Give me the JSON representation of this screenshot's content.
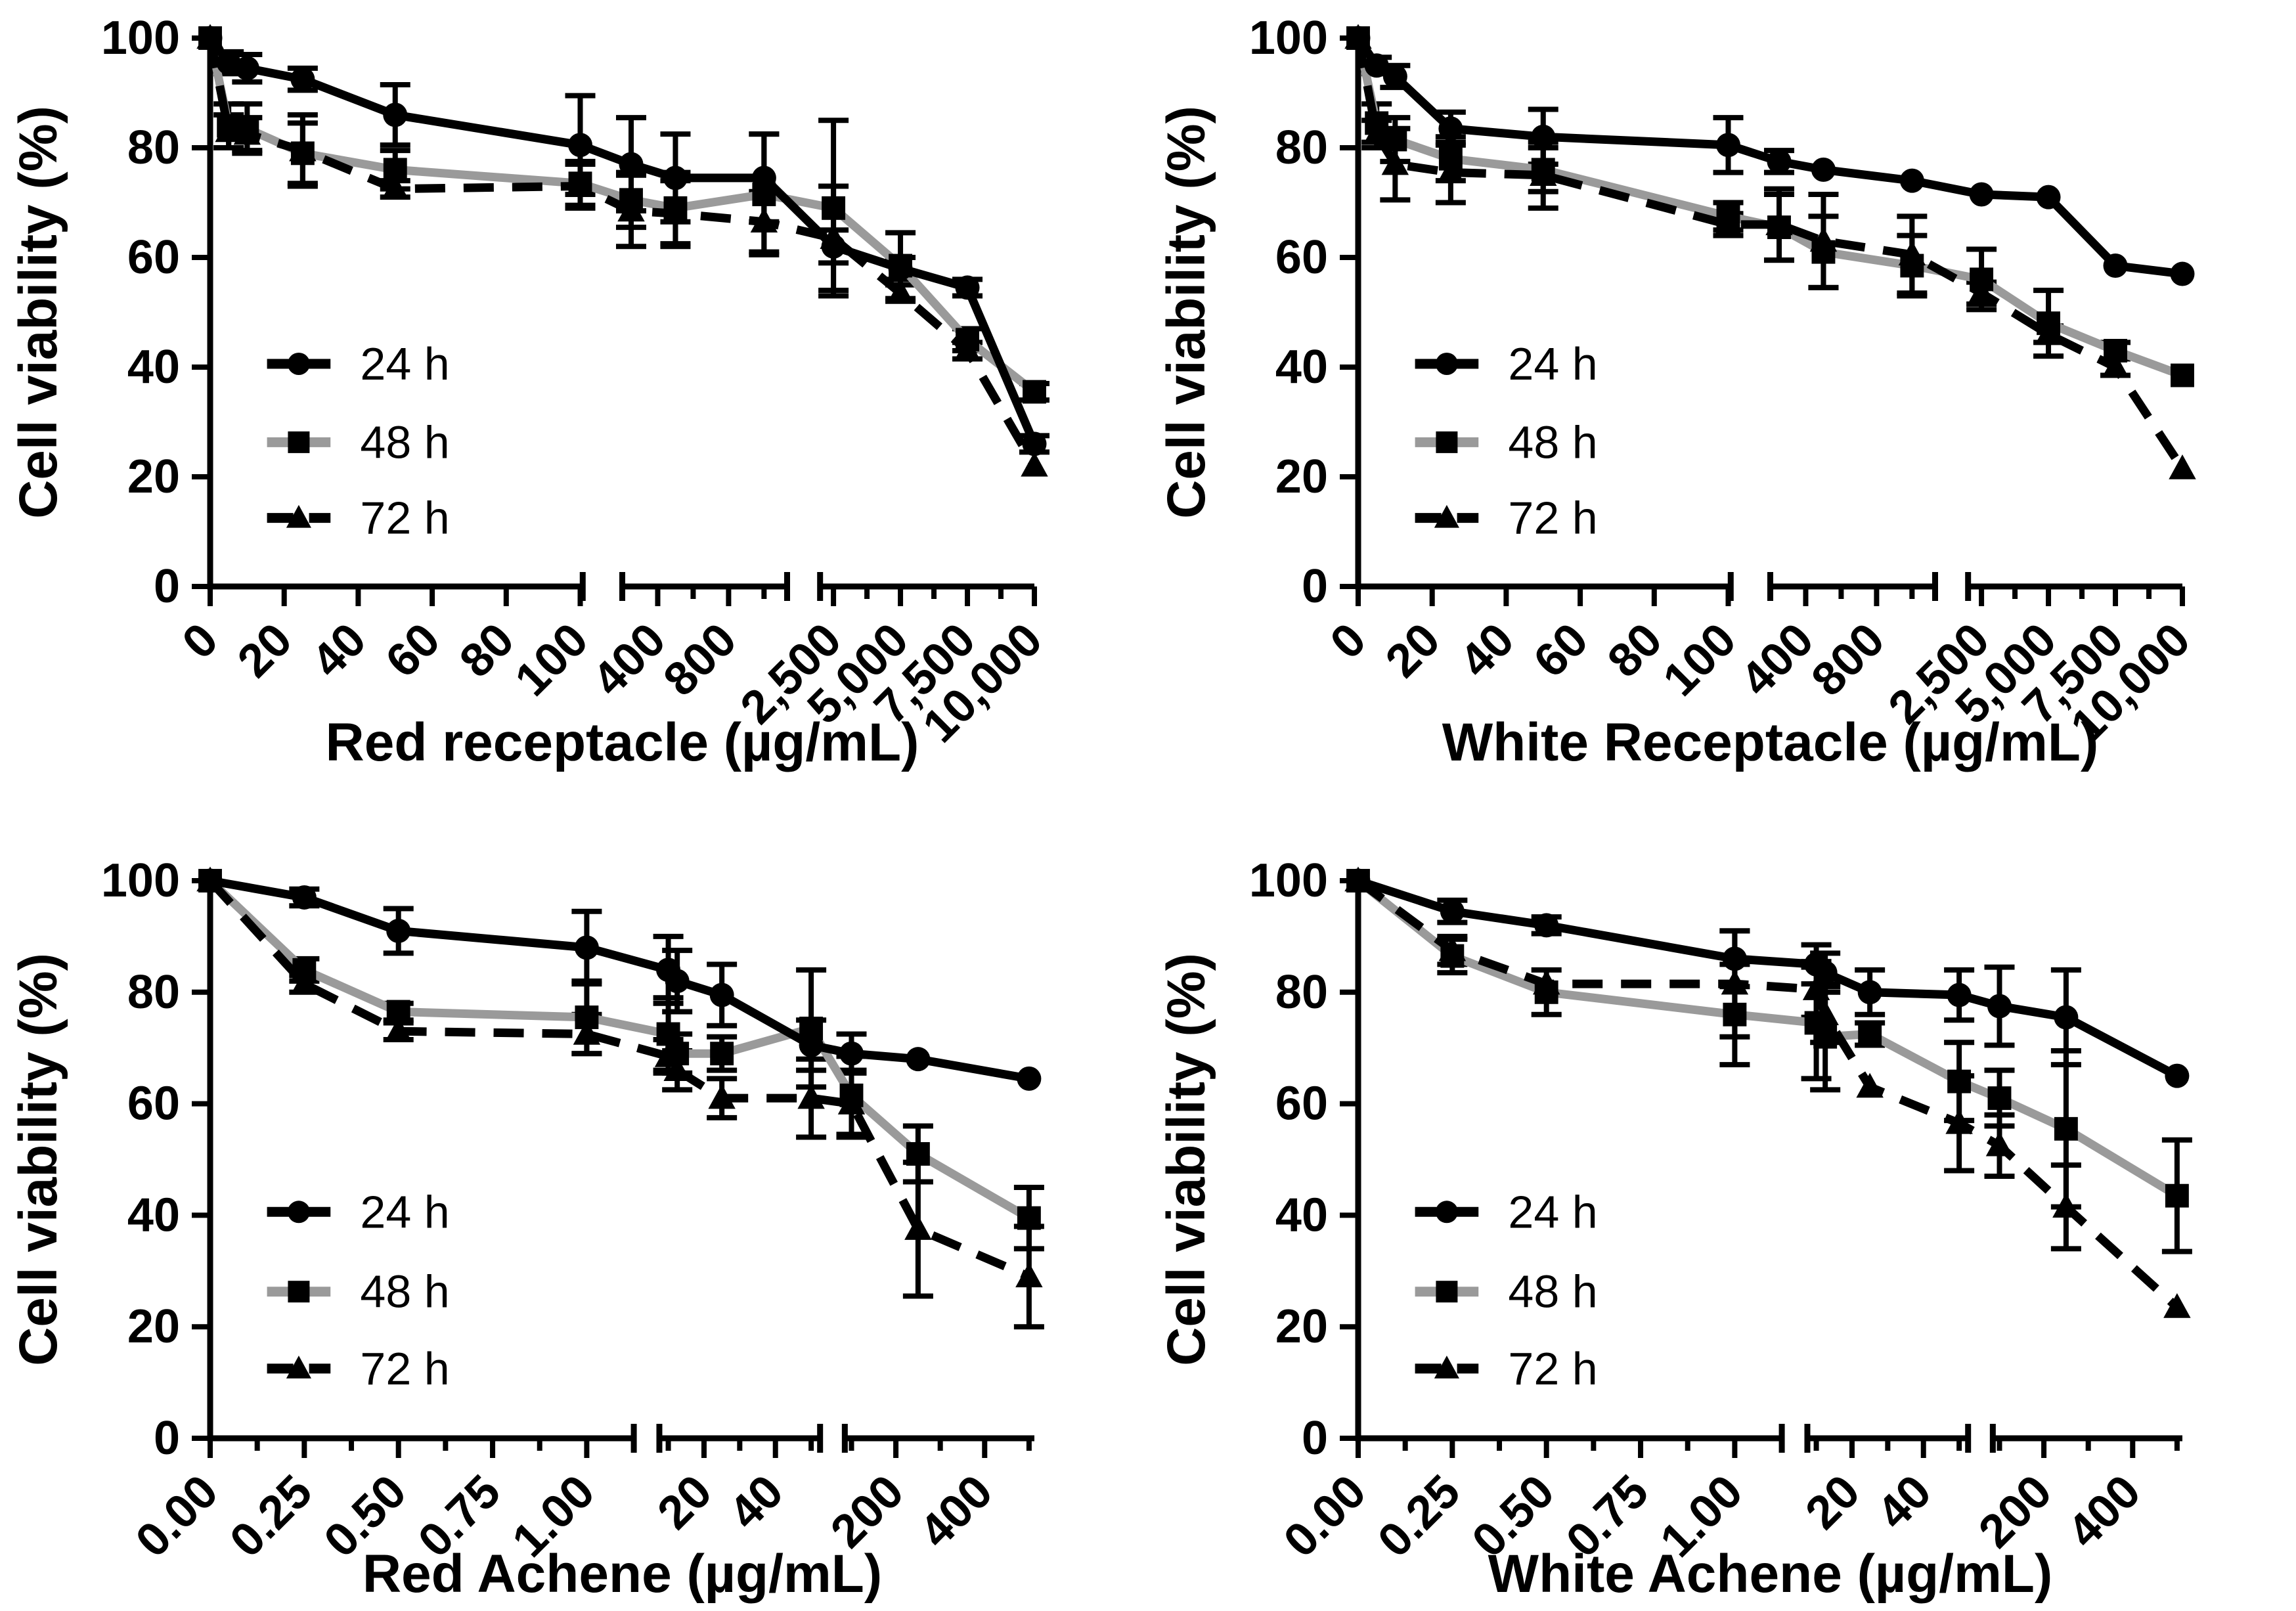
{
  "figure_title": "",
  "ylabel": "Cell viability (%)",
  "colors": {
    "black": "#000000",
    "gray": "#9a9a9a"
  },
  "legend_items": [
    "24 h",
    "48 h",
    "72 h"
  ],
  "rows": {
    "top": {
      "segments": [
        {
          "min": 0,
          "max": 100,
          "f0": 0.0,
          "f1": 0.449,
          "fEnd": 0.452,
          "majors": [
            {
              "v": 0,
              "label": "0"
            },
            {
              "v": 20,
              "label": "20"
            },
            {
              "v": 40,
              "label": "40"
            },
            {
              "v": 60,
              "label": "60"
            },
            {
              "v": 80,
              "label": "80"
            },
            {
              "v": 100,
              "label": "100"
            }
          ],
          "minors": []
        },
        {
          "min": 200,
          "max": 1000,
          "f0": 0.5,
          "f1": 0.672,
          "fEnd": 0.7,
          "majors": [
            {
              "v": 400,
              "label": "400"
            },
            {
              "v": 800,
              "label": "800"
            }
          ],
          "minors": [
            200,
            600,
            1000
          ]
        },
        {
          "min": 2000,
          "max": 10000,
          "f0": 0.74,
          "f1": 1.0,
          "fEnd": 1.0,
          "majors": [
            {
              "v": 2500,
              "label": "2,500"
            },
            {
              "v": 5000,
              "label": "5,000"
            },
            {
              "v": 7500,
              "label": "7,500"
            },
            {
              "v": 10000,
              "label": "10,000"
            }
          ],
          "minors": [
            3750,
            6250,
            8750
          ]
        }
      ]
    },
    "bottom": {
      "segments": [
        {
          "min": 0,
          "max": 1.125,
          "f0": 0.0,
          "f1": 0.514,
          "fEnd": 0.514,
          "majors": [
            {
              "v": 0,
              "label": "0.00"
            },
            {
              "v": 0.25,
              "label": "0.25"
            },
            {
              "v": 0.5,
              "label": "0.50"
            },
            {
              "v": 0.75,
              "label": "0.75"
            },
            {
              "v": 1.0,
              "label": "1.00"
            }
          ],
          "minors": [
            0.125,
            0.375,
            0.625,
            0.875,
            1.125
          ]
        },
        {
          "min": 7.5,
          "max": 52.5,
          "f0": 0.545,
          "f1": 0.74,
          "fEnd": 0.74,
          "majors": [
            {
              "v": 20,
              "label": "20"
            },
            {
              "v": 40,
              "label": "40"
            }
          ],
          "minors": [
            10,
            30,
            50
          ]
        },
        {
          "min": 85,
          "max": 512,
          "f0": 0.77,
          "f1": 1.0,
          "fEnd": 1.0,
          "majors": [
            {
              "v": 200,
              "label": "200"
            },
            {
              "v": 400,
              "label": "400"
            }
          ],
          "minors": [
            100,
            300,
            500
          ]
        }
      ]
    }
  },
  "chart_data": [
    {
      "id": "red-receptacle",
      "type": "line",
      "row": "top",
      "title": "",
      "xlabel": "Red receptacle (µg/mL)",
      "ylabel": "Cell viability (%)",
      "ylim": [
        0,
        100
      ],
      "yticks": [
        0,
        20,
        40,
        60,
        80,
        100
      ],
      "grid": false,
      "legend_position": "lower-left",
      "x": [
        0,
        5,
        10,
        25,
        50,
        100,
        250,
        500,
        1000,
        2500,
        5000,
        7500,
        10000
      ],
      "series": [
        {
          "name": "24 h",
          "marker": "circle",
          "line": "solid",
          "lineColor": "black",
          "values": [
            100,
            95.5,
            94.5,
            92.5,
            86,
            80.5,
            77,
            74.5,
            74.5,
            62,
            58,
            54.5,
            26
          ],
          "errors": [
            0.5,
            2,
            2.5,
            2,
            5.5,
            9,
            8.5,
            8,
            8,
            3,
            2,
            1.5,
            1.5
          ]
        },
        {
          "name": "48 h",
          "marker": "square",
          "line": "solid",
          "lineColor": "gray",
          "values": [
            100,
            84,
            83.5,
            79,
            76,
            73.5,
            70.5,
            69,
            71.5,
            69,
            58.5,
            45,
            35.5
          ],
          "errors": [
            0.5,
            4,
            4.5,
            5.5,
            3.5,
            4,
            5,
            6.5,
            11,
            16,
            6,
            2,
            1.5
          ]
        },
        {
          "name": "72 h",
          "marker": "triangle",
          "line": "dashed",
          "lineColor": "black",
          "values": [
            100,
            83,
            82.5,
            79.5,
            72.5,
            73,
            68.5,
            68,
            66.5,
            63.5,
            53.5,
            43,
            22
          ],
          "errors": [
            0.5,
            3,
            3,
            6.5,
            1.5,
            4,
            6.5,
            6,
            5.5,
            9.5,
            1.5,
            1.5,
            1
          ]
        }
      ]
    },
    {
      "id": "white-receptacle",
      "type": "line",
      "row": "top",
      "title": "",
      "xlabel": "White Receptacle (µg/mL)",
      "ylabel": "Cell viability (%)",
      "ylim": [
        0,
        100
      ],
      "yticks": [
        0,
        20,
        40,
        60,
        80,
        100
      ],
      "grid": false,
      "legend_position": "lower-left",
      "x": [
        0,
        5,
        10,
        25,
        50,
        100,
        250,
        500,
        1000,
        2500,
        5000,
        7500,
        10000
      ],
      "series": [
        {
          "name": "24 h",
          "marker": "circle",
          "line": "solid",
          "lineColor": "black",
          "values": [
            100,
            95,
            93,
            83.5,
            82,
            80.5,
            77.5,
            76,
            74,
            71.5,
            71,
            58.5,
            57
          ],
          "errors": [
            0.5,
            1.5,
            2,
            3,
            5,
            5,
            2,
            1,
            1,
            1,
            1,
            1,
            1
          ]
        },
        {
          "name": "48 h",
          "marker": "square",
          "line": "solid",
          "lineColor": "gray",
          "values": [
            100,
            84.5,
            81.5,
            78,
            76,
            67.5,
            65.5,
            61,
            58.5,
            56,
            48,
            43,
            38.5
          ],
          "errors": [
            0.5,
            3.5,
            4,
            4,
            4,
            2.5,
            6,
            6.5,
            5.5,
            5.5,
            6,
            1.5,
            1
          ]
        },
        {
          "name": "72 h",
          "marker": "triangle",
          "line": "dashed",
          "lineColor": "black",
          "values": [
            100,
            82.5,
            77,
            75.5,
            75,
            66,
            66,
            63,
            60.5,
            53.5,
            46,
            40,
            21.5
          ],
          "errors": [
            0.5,
            2.5,
            6.5,
            5.5,
            6,
            2,
            6.5,
            8.5,
            7,
            2,
            1.5,
            1.5,
            1
          ]
        }
      ]
    },
    {
      "id": "red-achene",
      "type": "line",
      "row": "bottom",
      "title": "",
      "xlabel": "Red Achene (µg/mL)",
      "ylabel": "Cell viability (%)",
      "ylim": [
        0,
        100
      ],
      "yticks": [
        0,
        20,
        40,
        60,
        80,
        100
      ],
      "grid": false,
      "legend_position": "lower-left",
      "x": [
        0,
        0.25,
        0.5,
        1,
        10,
        12.5,
        25,
        50,
        100,
        250,
        500
      ],
      "series": [
        {
          "name": "24 h",
          "marker": "circle",
          "line": "solid",
          "lineColor": "black",
          "values": [
            100,
            97,
            91,
            88,
            84,
            82,
            79.5,
            70.5,
            69,
            68,
            64.5
          ],
          "errors": [
            0.5,
            1.5,
            4,
            6.5,
            6,
            5.5,
            5.5,
            4.5,
            3.5,
            1,
            1
          ]
        },
        {
          "name": "48 h",
          "marker": "square",
          "line": "solid",
          "lineColor": "gray",
          "values": [
            100,
            84,
            76.5,
            75.5,
            72.5,
            69,
            69,
            73.5,
            61.5,
            51,
            39.5
          ],
          "errors": [
            0.5,
            2,
            1.5,
            6.5,
            6.5,
            3.5,
            3,
            10.5,
            7,
            5,
            5.5
          ]
        },
        {
          "name": "72 h",
          "marker": "triangle",
          "line": "dashed",
          "lineColor": "black",
          "values": [
            100,
            81.5,
            73,
            72.5,
            68.5,
            66,
            61,
            61,
            60,
            37.5,
            29
          ],
          "errors": [
            0.5,
            1.5,
            1.5,
            3.5,
            3,
            3.5,
            3.5,
            7,
            6,
            12,
            9
          ]
        }
      ]
    },
    {
      "id": "white-achene",
      "type": "line",
      "row": "bottom",
      "title": "",
      "xlabel": "White Achene (µg/mL)",
      "ylabel": "Cell viability (%)",
      "ylim": [
        0,
        100
      ],
      "yticks": [
        0,
        20,
        40,
        60,
        80,
        100
      ],
      "grid": false,
      "legend_position": "lower-left",
      "x": [
        0,
        0.25,
        0.5,
        1,
        10,
        12.5,
        25,
        50,
        100,
        250,
        500
      ],
      "series": [
        {
          "name": "24 h",
          "marker": "circle",
          "line": "solid",
          "lineColor": "black",
          "values": [
            100,
            94.5,
            92,
            86,
            85,
            83.5,
            80,
            79.5,
            77.5,
            75.5,
            65
          ],
          "errors": [
            0.5,
            2,
            1.5,
            5,
            3.5,
            3.5,
            4,
            4.5,
            7,
            8.5,
            1
          ]
        },
        {
          "name": "48 h",
          "marker": "square",
          "line": "solid",
          "lineColor": "gray",
          "values": [
            100,
            86.5,
            80,
            76,
            74.5,
            72,
            72.5,
            64,
            61,
            55.5,
            43.5
          ],
          "errors": [
            0.5,
            3,
            4,
            9,
            10,
            9.5,
            2,
            7,
            5,
            14,
            10
          ]
        },
        {
          "name": "72 h",
          "marker": "triangle",
          "line": "dashed",
          "lineColor": "black",
          "values": [
            100,
            87.5,
            81.5,
            81.5,
            80.5,
            76,
            63,
            56.5,
            52.5,
            41.5,
            23.5
          ],
          "errors": [
            0.5,
            2.5,
            1,
            9.5,
            5,
            5,
            1,
            8.5,
            5.5,
            7.5,
            1
          ]
        }
      ]
    }
  ]
}
